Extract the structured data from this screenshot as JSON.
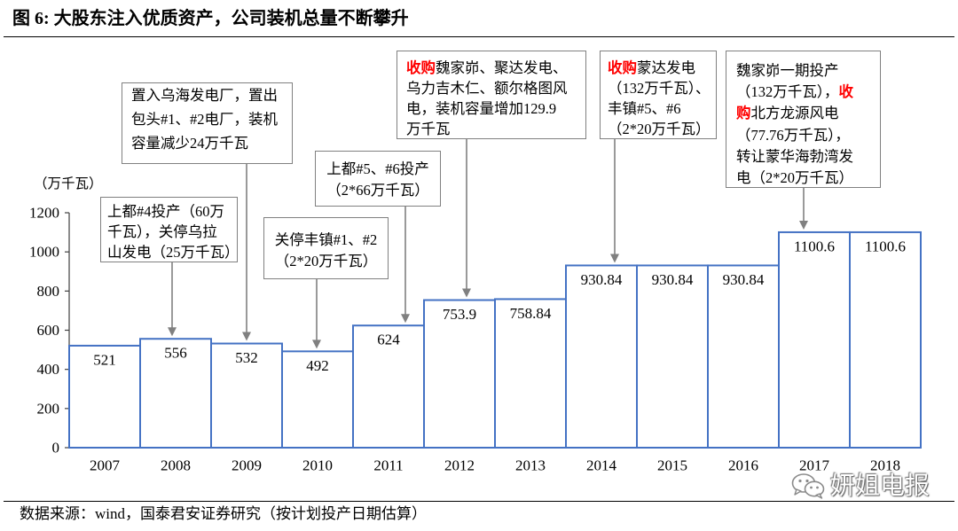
{
  "chart_data": {
    "type": "bar",
    "title": "图 6: 大股东注入优质资产，公司装机总量不断攀升",
    "xlabel": "",
    "ylabel": "（万千瓦）",
    "categories": [
      "2007",
      "2008",
      "2009",
      "2010",
      "2011",
      "2012",
      "2013",
      "2014",
      "2015",
      "2016",
      "2017",
      "2018"
    ],
    "values": [
      521,
      556,
      532,
      492,
      624,
      753.9,
      758.84,
      930.84,
      930.84,
      930.84,
      1100.6,
      1100.6
    ],
    "ylim": [
      0,
      1200
    ],
    "yticks": [
      0,
      200,
      400,
      600,
      800,
      1000,
      1200
    ],
    "grid": false,
    "legend": false,
    "colors": {
      "bar_outline": "#4472C4",
      "bar_fill": "#FFFFFF",
      "arrow": "#808080",
      "box_border": "#808080",
      "highlight": "#FF0000"
    },
    "annotations": [
      {
        "lines": [
          [
            {
              "text": "上都#4投产（60万",
              "highlight": false
            }
          ],
          [
            {
              "text": "千瓦），关停乌拉",
              "highlight": false
            }
          ],
          [
            {
              "text": "山发电（25万千瓦）",
              "highlight": false
            }
          ]
        ]
      },
      {
        "lines": [
          [
            {
              "text": "置入乌海发电厂，置出",
              "highlight": false
            }
          ],
          [
            {
              "text": "包头#1、#2电厂，装机",
              "highlight": false
            }
          ],
          [
            {
              "text": "容量减少24万千瓦",
              "highlight": false
            }
          ]
        ]
      },
      {
        "lines": [
          [
            {
              "text": "关停丰镇#1、#2",
              "highlight": false
            }
          ],
          [
            {
              "text": "（2*20万千瓦）",
              "highlight": false
            }
          ]
        ]
      },
      {
        "lines": [
          [
            {
              "text": "上都#5、#6投产",
              "highlight": false
            }
          ],
          [
            {
              "text": "（2*66万千瓦）",
              "highlight": false
            }
          ]
        ]
      },
      {
        "lines": [
          [
            {
              "text": "收购",
              "highlight": true
            },
            {
              "text": "魏家峁、聚达发电、",
              "highlight": false
            }
          ],
          [
            {
              "text": "乌力吉木仁、额尔格图风",
              "highlight": false
            }
          ],
          [
            {
              "text": "电，装机容量增加129.9",
              "highlight": false
            }
          ],
          [
            {
              "text": "万千瓦",
              "highlight": false
            }
          ]
        ]
      },
      {
        "lines": [
          [
            {
              "text": "收购",
              "highlight": true
            },
            {
              "text": "蒙达发电",
              "highlight": false
            }
          ],
          [
            {
              "text": "（132万千瓦）、",
              "highlight": false
            }
          ],
          [
            {
              "text": "丰镇#5、#6",
              "highlight": false
            }
          ],
          [
            {
              "text": "（2*20万千瓦）",
              "highlight": false
            }
          ]
        ]
      },
      {
        "lines": [
          [
            {
              "text": "魏家峁一期投产",
              "highlight": false
            }
          ],
          [
            {
              "text": "（132万千瓦），",
              "highlight": false
            },
            {
              "text": "收",
              "highlight": true
            }
          ],
          [
            {
              "text": "购",
              "highlight": true
            },
            {
              "text": "北方龙源风电",
              "highlight": false
            }
          ],
          [
            {
              "text": "（77.76万千瓦），",
              "highlight": false
            }
          ],
          [
            {
              "text": "转让蒙华海勃湾发",
              "highlight": false
            }
          ],
          [
            {
              "text": "电（2*20万千瓦）",
              "highlight": false
            }
          ]
        ]
      }
    ]
  },
  "footer": {
    "source": "数据来源：wind，国泰君安证券研究（按计划投产日期估算）"
  },
  "watermark": {
    "icon": "wechat-icon",
    "text": "妍姐电报"
  }
}
